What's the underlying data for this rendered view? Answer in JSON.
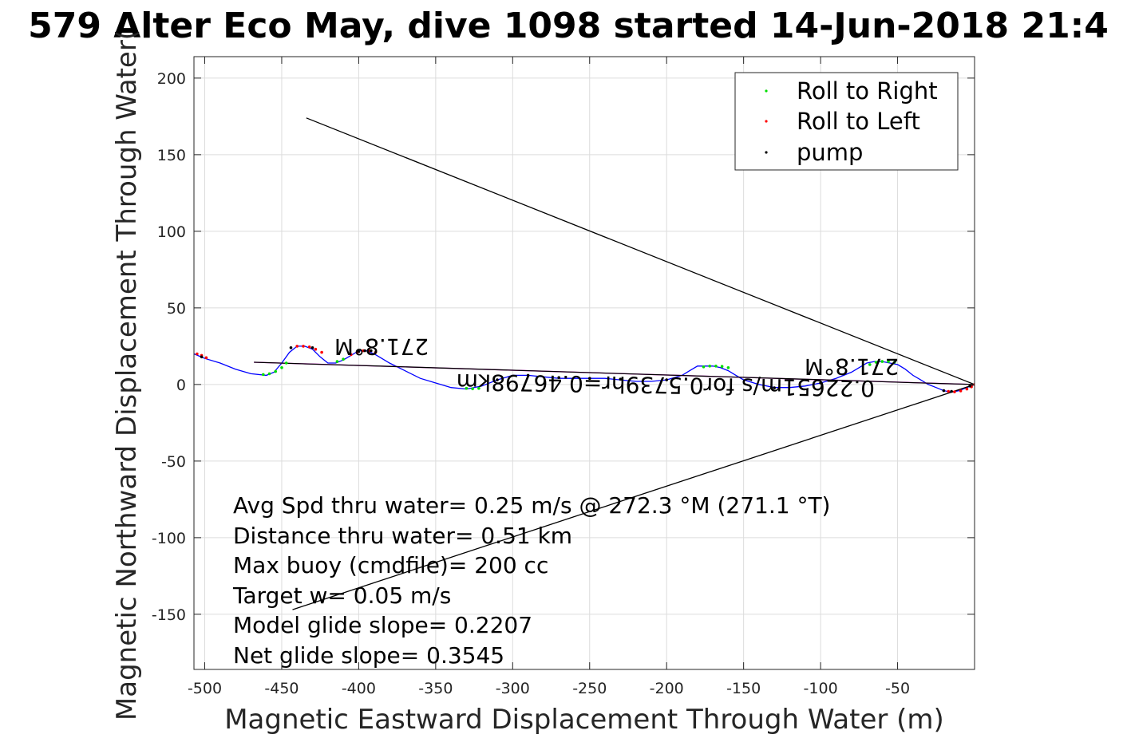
{
  "chart_data": {
    "type": "line",
    "title": "579 Alter Eco May, dive 1098 started 14-Jun-2018 21:4",
    "xlabel": "Magnetic Eastward Displacement Through Water (m)",
    "ylabel": "Magnetic Northward Displacement Through Water(",
    "xlim": [
      -507,
      0
    ],
    "ylim": [
      -186,
      214
    ],
    "xticks": [
      -500,
      -450,
      -400,
      -350,
      -300,
      -250,
      -200,
      -150,
      -100,
      -50
    ],
    "yticks": [
      -150,
      -100,
      -50,
      0,
      50,
      100,
      150,
      200
    ],
    "grid": true,
    "legend": {
      "placement": "top-right",
      "entries": [
        {
          "label": "Roll to Right",
          "color": "#00dd00"
        },
        {
          "label": "Roll to Left",
          "color": "#ff0000"
        },
        {
          "label": "pump",
          "color": "#000000"
        }
      ]
    },
    "series": [
      {
        "type": "line",
        "color": "#0000ff",
        "x": [
          -507,
          -500,
          -490,
          -480,
          -470,
          -460,
          -455,
          -450,
          -445,
          -440,
          -435,
          -430,
          -425,
          -420,
          -415,
          -410,
          -405,
          -400,
          -395,
          -390,
          -385,
          -380,
          -370,
          -360,
          -350,
          -340,
          -330,
          -320,
          -310,
          -300,
          -290,
          -280,
          -270,
          -260,
          -250,
          -240,
          -230,
          -220,
          -210,
          -200,
          -190,
          -185,
          -180,
          -175,
          -170,
          -165,
          -160,
          -155,
          -150,
          -140,
          -130,
          -120,
          -110,
          -100,
          -90,
          -80,
          -75,
          -70,
          -65,
          -60,
          -55,
          -50,
          -45,
          -40,
          -35,
          -30,
          -25,
          -20,
          -15,
          -10,
          -5,
          0
        ],
        "y": [
          20,
          17,
          14,
          10,
          7,
          6,
          8,
          14,
          21,
          25,
          25,
          23,
          18,
          14,
          14,
          16,
          19,
          22,
          22,
          20,
          17,
          14,
          9,
          4,
          1,
          -2,
          -3,
          -1,
          3,
          6,
          6,
          5,
          4,
          4,
          4,
          4,
          3,
          2,
          2,
          3,
          6,
          9,
          12,
          12,
          12,
          11,
          9,
          6,
          3,
          0,
          -2,
          -2,
          -1,
          1,
          4,
          8,
          11,
          14,
          15,
          15,
          14,
          13,
          10,
          6,
          3,
          0,
          -2,
          -4,
          -5,
          -4,
          -2,
          0
        ]
      },
      {
        "type": "line",
        "color": "#ff00ff",
        "x": [
          -468,
          0
        ],
        "y": [
          14.5,
          0
        ]
      },
      {
        "type": "line",
        "color": "#000000",
        "x": [
          -468,
          -420,
          -380,
          -300,
          -200,
          -100,
          -40,
          0
        ],
        "y": [
          14.5,
          13,
          11.8,
          9.3,
          6.2,
          3.1,
          1.2,
          0
        ]
      },
      {
        "type": "line",
        "color": "#000000",
        "x": [
          -434,
          0
        ],
        "y": [
          174,
          0
        ]
      },
      {
        "type": "line",
        "color": "#000000",
        "x": [
          -443,
          0
        ],
        "y": [
          -147,
          0
        ]
      }
    ],
    "markers": {
      "roll_right": {
        "color": "#00dd00",
        "x": [
          -462,
          -458,
          -454,
          -450,
          -447,
          -414,
          -410,
          -330,
          -326,
          -322,
          -176,
          -172,
          -168,
          -164,
          -160,
          -68,
          -64,
          -60,
          -56,
          -52
        ],
        "y": [
          6.5,
          7,
          8.5,
          11,
          14,
          15,
          16.5,
          -2.5,
          -2.8,
          -2.5,
          11.5,
          12,
          12,
          11.8,
          11,
          13,
          14.5,
          15,
          15,
          14.5
        ]
      },
      "roll_left": {
        "color": "#ff0000",
        "x": [
          -505,
          -502,
          -499,
          -440,
          -436,
          -432,
          -428,
          -424,
          -405,
          -401,
          -397,
          -393,
          -389,
          -17,
          -13,
          -9,
          -5,
          -2,
          0
        ],
        "y": [
          20,
          19,
          17.5,
          25,
          25,
          24.5,
          23,
          21,
          19.5,
          21,
          22,
          22,
          21,
          -4.5,
          -4.8,
          -4.2,
          -3,
          -1.5,
          0
        ]
      },
      "pump": {
        "color": "#000000",
        "x": [
          -502,
          -444,
          -430,
          -400,
          -396,
          -392,
          -310,
          -290,
          -270,
          -250,
          -230,
          -200,
          -130,
          -100,
          -20,
          -15,
          -3
        ],
        "y": [
          18,
          24,
          24,
          21.5,
          22,
          22,
          3,
          6,
          4.5,
          4,
          3.5,
          3,
          -2.2,
          1,
          -4,
          -4.5,
          -1
        ]
      }
    },
    "annotations": {
      "avg_speed": "Avg Spd thru water=  0.25 m/s @ 272.3 °M (271.1 °T)",
      "distance": "Distance thru water=  0.51 km",
      "max_buoy": "Max buoy (cmdfile)= 200 cc",
      "target_w": "Target w= 0.05 m/s",
      "model_glide": "Model glide slope= 0.2207",
      "net_glide": "Net glide slope= 0.3545",
      "heading_left": "271.8°M",
      "heading_right": "271.8°M",
      "speed_segment": "0.22651m/s for0.5739hr=0.46798km"
    }
  }
}
